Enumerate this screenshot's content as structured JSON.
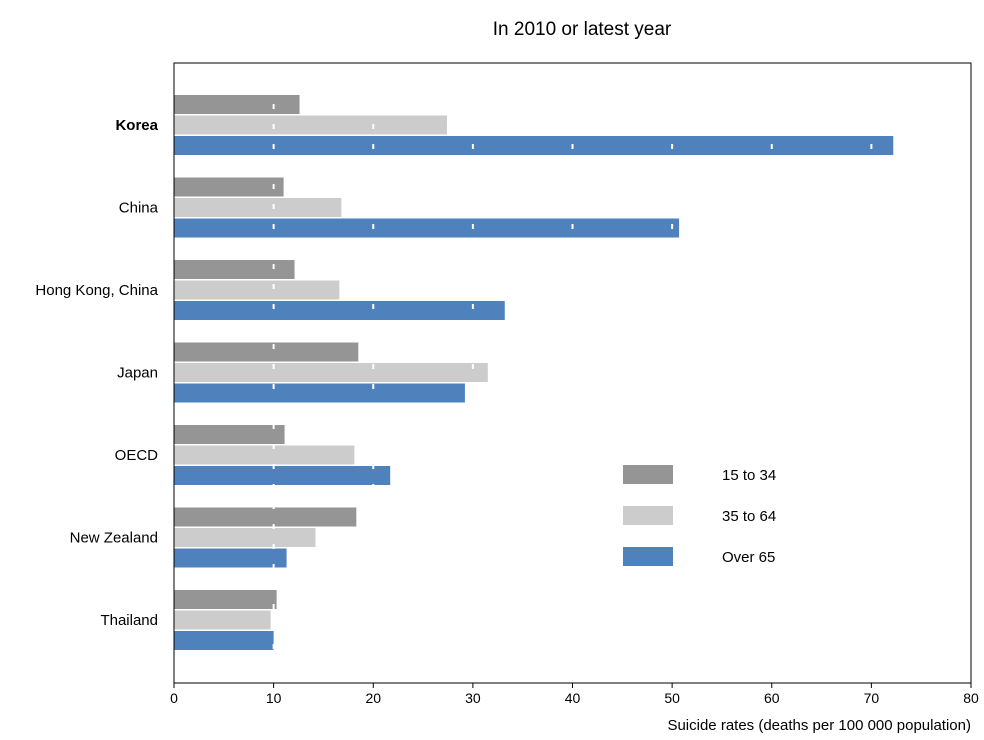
{
  "chart_data": {
    "type": "bar",
    "orientation": "horizontal",
    "title": "In 2010 or latest year",
    "xlabel": "Suicide rates (deaths per 100 000 population)",
    "ylabel": "",
    "xlim": [
      0,
      80
    ],
    "xticks": [
      0,
      10,
      20,
      30,
      40,
      50,
      60,
      70,
      80
    ],
    "categories": [
      "Korea",
      "China",
      "Hong Kong, China",
      "Japan",
      "OECD",
      "New Zealand",
      "Thailand"
    ],
    "highlighted_category": "Korea",
    "grid": "dashed white vertical lines at each 10 units",
    "legend_position": "lower-right",
    "series": [
      {
        "name": "15 to 34",
        "color": "#959595",
        "values": [
          12.6,
          11.0,
          12.1,
          18.5,
          11.1,
          18.3,
          10.3
        ]
      },
      {
        "name": "35 to 64",
        "color": "#cccccc",
        "values": [
          27.4,
          16.8,
          16.6,
          31.5,
          18.1,
          14.2,
          9.7
        ]
      },
      {
        "name": "Over 65",
        "color": "#4f81bd",
        "values": [
          72.2,
          50.7,
          33.2,
          29.2,
          21.7,
          11.3,
          10.0
        ]
      }
    ]
  }
}
